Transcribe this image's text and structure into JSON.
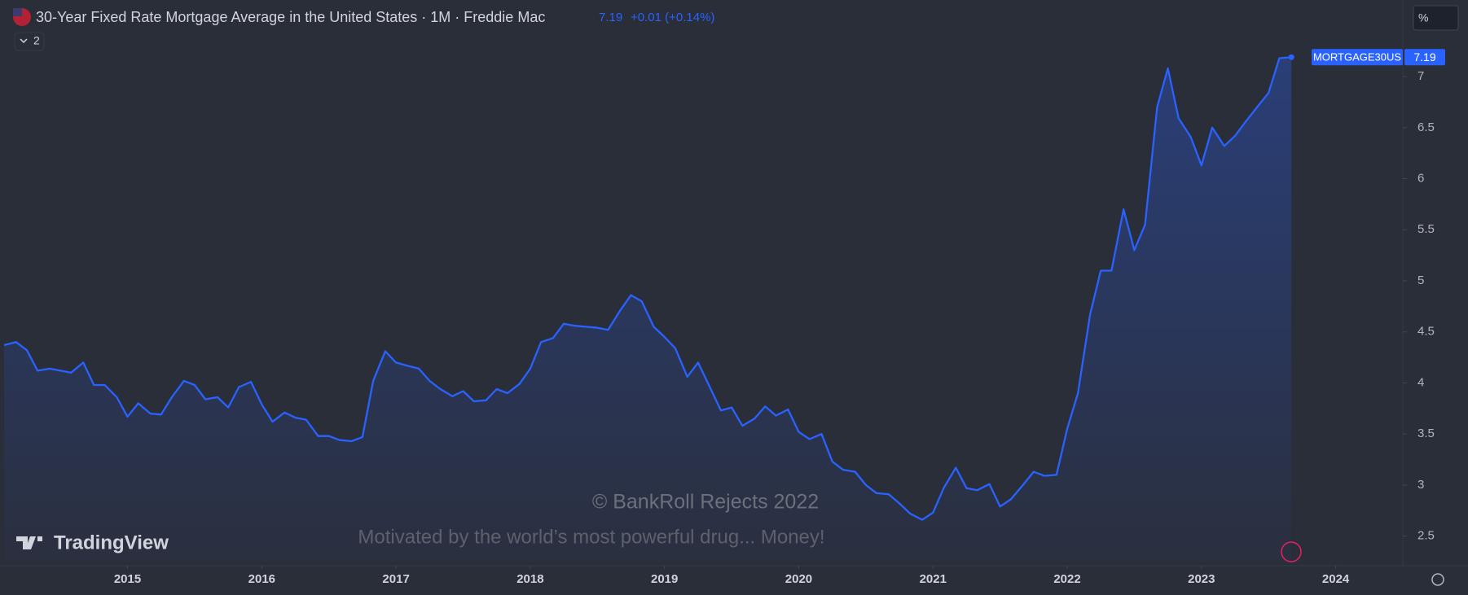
{
  "header": {
    "title": "30-Year Fixed Rate Mortgage Average in the United States · 1M · Freddie Mac",
    "change": "+0.01 (+0.14%)",
    "indicators": "2",
    "unit_button": "%"
  },
  "watermark": {
    "copyright": "© BankRoll Rejects 2022",
    "tagline": "Motivated by the world’s most powerful drug... Money!",
    "brand": "TradingView"
  },
  "chart_data": {
    "type": "line",
    "x": [
      2014.08,
      2014.17,
      2014.25,
      2014.33,
      2014.42,
      2014.5,
      2014.58,
      2014.67,
      2014.75,
      2014.83,
      2014.92,
      2015,
      2015.08,
      2015.17,
      2015.25,
      2015.33,
      2015.42,
      2015.5,
      2015.58,
      2015.67,
      2015.75,
      2015.83,
      2015.92,
      2016,
      2016.08,
      2016.17,
      2016.25,
      2016.33,
      2016.42,
      2016.5,
      2016.58,
      2016.67,
      2016.75,
      2016.83,
      2016.92,
      2017,
      2017.08,
      2017.17,
      2017.25,
      2017.33,
      2017.42,
      2017.5,
      2017.58,
      2017.67,
      2017.75,
      2017.83,
      2017.92,
      2018,
      2018.08,
      2018.17,
      2018.25,
      2018.33,
      2018.42,
      2018.5,
      2018.58,
      2018.67,
      2018.75,
      2018.83,
      2018.92,
      2019,
      2019.08,
      2019.17,
      2019.25,
      2019.33,
      2019.42,
      2019.5,
      2019.58,
      2019.67,
      2019.75,
      2019.83,
      2019.92,
      2020,
      2020.08,
      2020.17,
      2020.25,
      2020.33,
      2020.42,
      2020.5,
      2020.58,
      2020.67,
      2020.75,
      2020.83,
      2020.92,
      2021,
      2021.08,
      2021.17,
      2021.25,
      2021.33,
      2021.42,
      2021.5,
      2021.58,
      2021.67,
      2021.75,
      2021.83,
      2021.92,
      2022,
      2022.08,
      2022.17,
      2022.25,
      2022.33,
      2022.42,
      2022.5,
      2022.58,
      2022.67,
      2022.75,
      2022.83,
      2022.92,
      2023,
      2023.08,
      2023.17,
      2023.25,
      2023.33,
      2023.42,
      2023.5,
      2023.58,
      2023.67
    ],
    "series": [
      {
        "name": "MORTGAGE30US",
        "color": "#2962ff",
        "values": [
          4.37,
          4.4,
          4.32,
          4.12,
          4.14,
          4.12,
          4.1,
          4.2,
          3.98,
          3.98,
          3.86,
          3.67,
          3.8,
          3.7,
          3.69,
          3.86,
          4.02,
          3.98,
          3.84,
          3.86,
          3.76,
          3.96,
          4.01,
          3.79,
          3.62,
          3.71,
          3.66,
          3.64,
          3.48,
          3.48,
          3.44,
          3.43,
          3.47,
          4.02,
          4.31,
          4.2,
          4.17,
          4.14,
          4.02,
          3.94,
          3.87,
          3.92,
          3.82,
          3.83,
          3.94,
          3.9,
          3.99,
          4.14,
          4.4,
          4.44,
          4.58,
          4.56,
          4.55,
          4.54,
          4.52,
          4.71,
          4.86,
          4.8,
          4.55,
          4.45,
          4.34,
          4.06,
          4.2,
          3.98,
          3.73,
          3.76,
          3.58,
          3.65,
          3.77,
          3.68,
          3.74,
          3.52,
          3.45,
          3.5,
          3.23,
          3.15,
          3.13,
          3,
          2.92,
          2.91,
          2.82,
          2.72,
          2.66,
          2.73,
          2.97,
          3.17,
          2.97,
          2.95,
          3.01,
          2.79,
          2.86,
          3,
          3.13,
          3.09,
          3.1,
          3.55,
          3.9,
          4.67,
          5.1,
          5.1,
          5.7,
          5.3,
          5.55,
          6.7,
          7.08,
          6.59,
          6.41,
          6.13,
          6.5,
          6.32,
          6.42,
          6.56,
          6.71,
          6.84,
          7.18,
          7.19
        ]
      }
    ],
    "xlim": [
      2014.05,
      2024.5
    ],
    "xticks": [
      2015,
      2016,
      2017,
      2018,
      2019,
      2020,
      2021,
      2022,
      2023,
      2024
    ],
    "ylim": [
      2.25,
      7.75
    ],
    "yticks": [
      2.5,
      3,
      3.5,
      4,
      4.5,
      5,
      5.5,
      6,
      6.5,
      7
    ],
    "grid": false
  }
}
